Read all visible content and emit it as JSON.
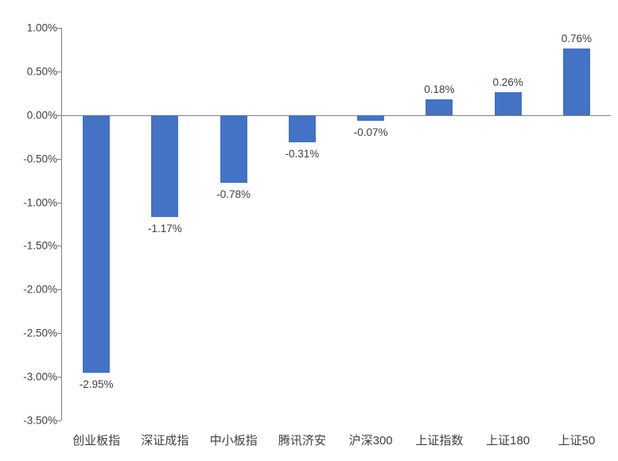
{
  "chart_data": {
    "type": "bar",
    "categories": [
      "创业板指",
      "深证成指",
      "中小板指",
      "腾讯济安",
      "沪深300",
      "上证指数",
      "上证180",
      "上证50"
    ],
    "values": [
      -2.95,
      -1.17,
      -0.78,
      -0.31,
      -0.07,
      0.18,
      0.26,
      0.76
    ],
    "data_labels": [
      "-2.95%",
      "-1.17%",
      "-0.78%",
      "-0.31%",
      "-0.07%",
      "0.18%",
      "0.26%",
      "0.76%"
    ],
    "title": "",
    "xlabel": "",
    "ylabel": "",
    "ylim": [
      -3.5,
      1.0
    ],
    "ytick_values": [
      1.0,
      0.5,
      0.0,
      -0.5,
      -1.0,
      -1.5,
      -2.0,
      -2.5,
      -3.0,
      -3.5
    ],
    "ytick_labels": [
      "1.00%",
      "0.50%",
      "0.00%",
      "-0.50%",
      "-1.00%",
      "-1.50%",
      "-2.00%",
      "-2.50%",
      "-3.00%",
      "-3.50%"
    ],
    "grid": false,
    "legend": false,
    "data_label_position": "outside-end",
    "colors": {
      "bar": "#4472C4",
      "axis": "#808080",
      "text": "#404040"
    }
  }
}
